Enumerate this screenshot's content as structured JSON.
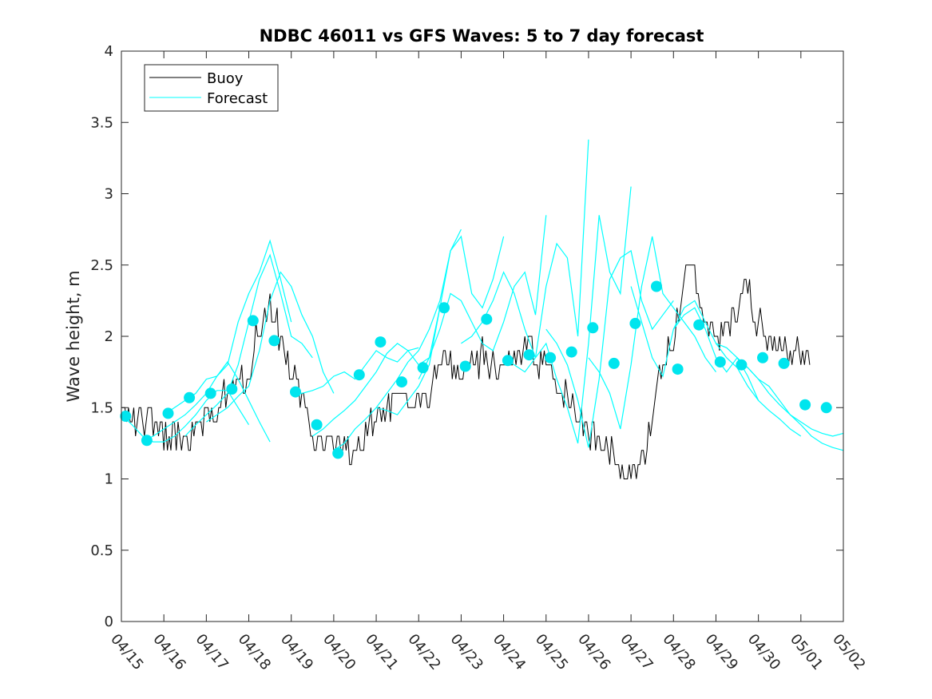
{
  "chart_data": {
    "type": "line",
    "title": "NDBC 46011 vs GFS Waves: 5 to 7 day forecast",
    "xlabel": "",
    "ylabel": "Wave height, m",
    "xlim": [
      0,
      17
    ],
    "ylim": [
      0,
      4
    ],
    "x_tick_labels": [
      "04/15",
      "04/16",
      "04/17",
      "04/18",
      "04/19",
      "04/20",
      "04/21",
      "04/22",
      "04/23",
      "04/24",
      "04/25",
      "04/26",
      "04/27",
      "04/28",
      "04/29",
      "04/30",
      "05/01",
      "05/02"
    ],
    "y_ticks": [
      0,
      0.5,
      1,
      1.5,
      2,
      2.5,
      3,
      3.5,
      4
    ],
    "y_tick_labels": [
      "0",
      "0.5",
      "1",
      "1.5",
      "2",
      "2.5",
      "3",
      "3.5",
      "4"
    ],
    "grid": false,
    "legend_position": "top-left",
    "x_units": "days since 04/15",
    "colors": {
      "buoy": "#000000",
      "forecast": "#00ffff",
      "points": "#00e5ee"
    },
    "series": [
      {
        "name": "Buoy",
        "color": "#000000",
        "x": [
          0,
          0.5,
          1,
          1.5,
          2,
          2.5,
          3,
          3.25,
          3.5,
          3.75,
          4,
          4.25,
          4.5,
          5,
          5.5,
          6,
          6.5,
          7,
          7.5,
          8,
          8.5,
          9,
          9.5,
          10,
          10.5,
          11,
          11.25,
          11.5,
          11.75,
          12,
          12.25,
          12.5,
          12.75,
          13,
          13.25,
          13.5,
          13.75,
          14,
          14.25,
          14.5,
          14.75,
          15,
          15.5,
          16,
          16.25
        ],
        "y": [
          1.45,
          1.4,
          1.3,
          1.3,
          1.4,
          1.6,
          1.7,
          2.1,
          2.2,
          2.0,
          1.7,
          1.6,
          1.3,
          1.25,
          1.2,
          1.4,
          1.55,
          1.5,
          1.8,
          1.75,
          1.85,
          1.75,
          1.9,
          1.8,
          1.55,
          1.35,
          1.25,
          1.2,
          1.1,
          1.05,
          1.1,
          1.5,
          1.8,
          2.0,
          2.35,
          2.45,
          2.1,
          2.0,
          2.05,
          2.2,
          2.4,
          2.1,
          1.95,
          1.85,
          1.8
        ]
      },
      {
        "name": "Forecast",
        "color": "#00ffff",
        "traces": [
          {
            "x": [
              0,
              0.25,
              0.5,
              0.75,
              1,
              1.25,
              1.5,
              1.75,
              2,
              2.25,
              2.5,
              2.75,
              3
            ],
            "y": [
              1.45,
              1.38,
              1.3,
              1.26,
              1.26,
              1.3,
              1.37,
              1.45,
              1.55,
              1.62,
              1.62,
              1.5,
              1.38
            ]
          },
          {
            "x": [
              0.5,
              0.75,
              1,
              1.25,
              1.5,
              1.75,
              2,
              2.25,
              2.5,
              2.75,
              3,
              3.25,
              3.5
            ],
            "y": [
              1.27,
              1.3,
              1.35,
              1.4,
              1.45,
              1.52,
              1.6,
              1.72,
              1.82,
              1.7,
              1.55,
              1.4,
              1.26
            ]
          },
          {
            "x": [
              1,
              1.25,
              1.5,
              1.75,
              2,
              2.25,
              2.5,
              2.75,
              3,
              3.25,
              3.5,
              3.75,
              4
            ],
            "y": [
              1.45,
              1.5,
              1.55,
              1.6,
              1.7,
              1.72,
              1.8,
              2.1,
              2.3,
              2.45,
              2.67,
              2.4,
              2.1
            ]
          },
          {
            "x": [
              1.5,
              1.75,
              2,
              2.25,
              2.5,
              2.75,
              3,
              3.25,
              3.5,
              3.75,
              4,
              4.25,
              4.5
            ],
            "y": [
              1.3,
              1.38,
              1.45,
              1.52,
              1.6,
              1.8,
              2.1,
              2.4,
              2.57,
              2.3,
              2.0,
              1.95,
              1.85
            ]
          },
          {
            "x": [
              2,
              2.25,
              2.5,
              2.75,
              3,
              3.25,
              3.5,
              3.75,
              4,
              4.25,
              4.5,
              4.75,
              5
            ],
            "y": [
              1.4,
              1.45,
              1.5,
              1.58,
              1.65,
              1.9,
              2.25,
              2.45,
              2.35,
              2.15,
              2.0,
              1.75,
              1.6
            ]
          },
          {
            "x": [
              4,
              4.25,
              4.5,
              4.75,
              5,
              5.25,
              5.5,
              5.75,
              6,
              6.25,
              6.5,
              6.75,
              7
            ],
            "y": [
              1.62,
              1.6,
              1.62,
              1.65,
              1.72,
              1.75,
              1.7,
              1.8,
              1.9,
              1.85,
              1.82,
              1.9,
              1.92
            ]
          },
          {
            "x": [
              4.5,
              4.75,
              5,
              5.25,
              5.5,
              5.75,
              6,
              6.25,
              6.5,
              6.75,
              7,
              7.25,
              7.5
            ],
            "y": [
              1.3,
              1.35,
              1.42,
              1.48,
              1.55,
              1.65,
              1.75,
              1.88,
              1.95,
              1.9,
              1.8,
              1.85,
              2.2
            ]
          },
          {
            "x": [
              5,
              5.25,
              5.5,
              5.75,
              6,
              6.25,
              6.5,
              6.75,
              7,
              7.25,
              7.5,
              7.75,
              8
            ],
            "y": [
              1.2,
              1.25,
              1.35,
              1.42,
              1.5,
              1.48,
              1.45,
              1.55,
              1.65,
              1.8,
              2.2,
              2.6,
              2.75
            ]
          },
          {
            "x": [
              6,
              6.25,
              6.5,
              6.75,
              7,
              7.25,
              7.5,
              7.75,
              8,
              8.25,
              8.5,
              8.75,
              9
            ],
            "y": [
              1.5,
              1.6,
              1.7,
              1.82,
              1.9,
              2.05,
              2.25,
              2.6,
              2.7,
              2.3,
              2.2,
              2.4,
              2.7
            ]
          },
          {
            "x": [
              7,
              7.25,
              7.5,
              7.75,
              8,
              8.25,
              8.5,
              8.75,
              9,
              9.25,
              9.5,
              9.75,
              10
            ],
            "y": [
              1.7,
              1.85,
              2.05,
              2.3,
              2.25,
              2.1,
              1.95,
              1.9,
              2.1,
              2.35,
              2.45,
              2.15,
              2.85
            ]
          },
          {
            "x": [
              8,
              8.25,
              8.5,
              8.75,
              9,
              9.25,
              9.5,
              9.75,
              10,
              10.25,
              10.5,
              10.75,
              11
            ],
            "y": [
              1.95,
              2.0,
              2.1,
              2.25,
              2.45,
              2.3,
              2.05,
              1.85,
              2.35,
              2.65,
              2.55,
              2.0,
              3.38
            ]
          },
          {
            "x": [
              9,
              9.25,
              9.5,
              9.75,
              10,
              10.25,
              10.5,
              10.75,
              11,
              11.25,
              11.5,
              11.75,
              12
            ],
            "y": [
              1.85,
              1.8,
              1.75,
              1.85,
              1.95,
              1.7,
              1.5,
              1.25,
              1.95,
              2.85,
              2.45,
              2.3,
              3.05
            ]
          },
          {
            "x": [
              10,
              10.25,
              10.5,
              10.75,
              11,
              11.25,
              11.5,
              11.75,
              12,
              12.25,
              12.5,
              12.75,
              13
            ],
            "y": [
              2.05,
              1.95,
              1.8,
              1.55,
              1.22,
              1.7,
              2.4,
              2.55,
              2.6,
              2.25,
              2.05,
              2.15,
              2.25
            ]
          },
          {
            "x": [
              11,
              11.25,
              11.5,
              11.75,
              12,
              12.25,
              12.5,
              12.75,
              13,
              13.25,
              13.5,
              13.75,
              14
            ],
            "y": [
              1.85,
              1.75,
              1.6,
              1.35,
              1.8,
              2.35,
              2.7,
              2.3,
              2.2,
              2.1,
              2.0,
              1.85,
              1.75
            ]
          },
          {
            "x": [
              12,
              12.25,
              12.5,
              12.75,
              13,
              13.25,
              13.5,
              13.75,
              14,
              14.25,
              14.5,
              14.75,
              15
            ],
            "y": [
              2.35,
              2.1,
              1.85,
              1.72,
              2.05,
              2.2,
              2.25,
              2.1,
              1.95,
              1.85,
              1.78,
              1.65,
              1.55
            ]
          },
          {
            "x": [
              13,
              13.25,
              13.5,
              13.75,
              14,
              14.25,
              14.5,
              14.75,
              15,
              15.25,
              15.5,
              15.75,
              16
            ],
            "y": [
              2.05,
              2.15,
              2.2,
              2.05,
              1.85,
              1.75,
              1.85,
              1.72,
              1.55,
              1.48,
              1.42,
              1.35,
              1.3
            ]
          },
          {
            "x": [
              14,
              14.25,
              14.5,
              14.75,
              15,
              15.25,
              15.5,
              15.75,
              16,
              16.25,
              16.5,
              16.75,
              17
            ],
            "y": [
              1.95,
              1.92,
              1.85,
              1.78,
              1.7,
              1.65,
              1.55,
              1.45,
              1.38,
              1.3,
              1.25,
              1.22,
              1.2
            ]
          },
          {
            "x": [
              14.5,
              14.75,
              15,
              15.25,
              15.5,
              15.75,
              16,
              16.25,
              16.5,
              16.75,
              17
            ],
            "y": [
              1.82,
              1.78,
              1.7,
              1.6,
              1.52,
              1.45,
              1.4,
              1.35,
              1.32,
              1.3,
              1.32
            ]
          }
        ]
      },
      {
        "name": "",
        "color": "#00e5ee",
        "marker": "circle",
        "x": [
          0.1,
          0.6,
          1.1,
          1.6,
          2.1,
          2.6,
          3.1,
          3.6,
          4.1,
          4.6,
          5.1,
          5.6,
          6.1,
          6.6,
          7.1,
          7.6,
          8.1,
          8.6,
          9.1,
          9.6,
          10.1,
          10.6,
          11.1,
          11.6,
          12.1,
          12.6,
          13.1,
          13.6,
          14.1,
          14.6,
          15.1,
          15.6,
          16.1,
          16.6
        ],
        "y": [
          1.44,
          1.27,
          1.46,
          1.57,
          1.6,
          1.63,
          2.11,
          1.97,
          1.61,
          1.38,
          1.18,
          1.73,
          1.96,
          1.68,
          1.78,
          2.2,
          1.79,
          2.12,
          1.83,
          1.87,
          1.85,
          1.89,
          2.06,
          1.81,
          2.09,
          2.35,
          1.77,
          2.08,
          1.82,
          1.8,
          1.85,
          1.81,
          1.52,
          1.5
        ]
      }
    ]
  }
}
